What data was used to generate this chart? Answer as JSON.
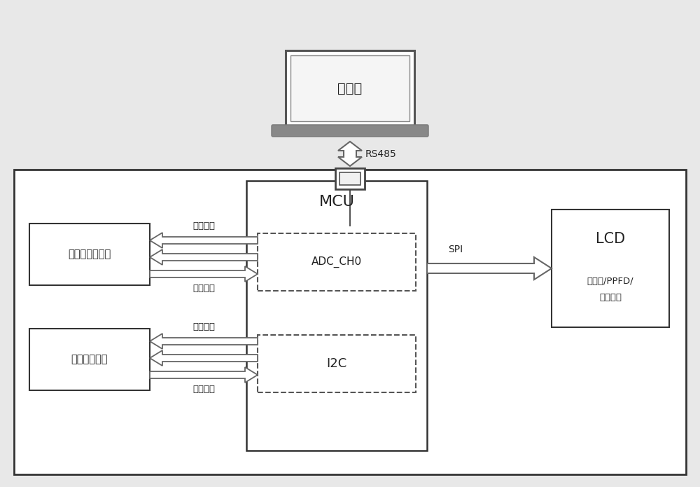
{
  "bg_color": "#e8e8e8",
  "main_box_color": "#ffffff",
  "main_box_edge": "#333333",
  "block_edge": "#333333",
  "dashed_edge": "#555555",
  "arrow_color": "#666666",
  "arrow_face": "#ffffff",
  "text_color": "#222222",
  "upper_computer_label": "上位机",
  "rs485_label": "RS485",
  "mcu_label": "MCU",
  "adc_label": "ADC_CH0",
  "i2c_label": "I2C",
  "sensor1_label": "光照传感器模块",
  "sensor2_label": "雷达测距模块",
  "lcd_label": "LCD",
  "lcd_sub1": "（距离/PPFD/",
  "lcd_sub2": "光谱图）",
  "spi_label": "SPI",
  "drive_seq1": "驱动时序",
  "analog_out": "模拟输出",
  "drive_seq2": "驱动时序",
  "digital_out": "数字输出"
}
